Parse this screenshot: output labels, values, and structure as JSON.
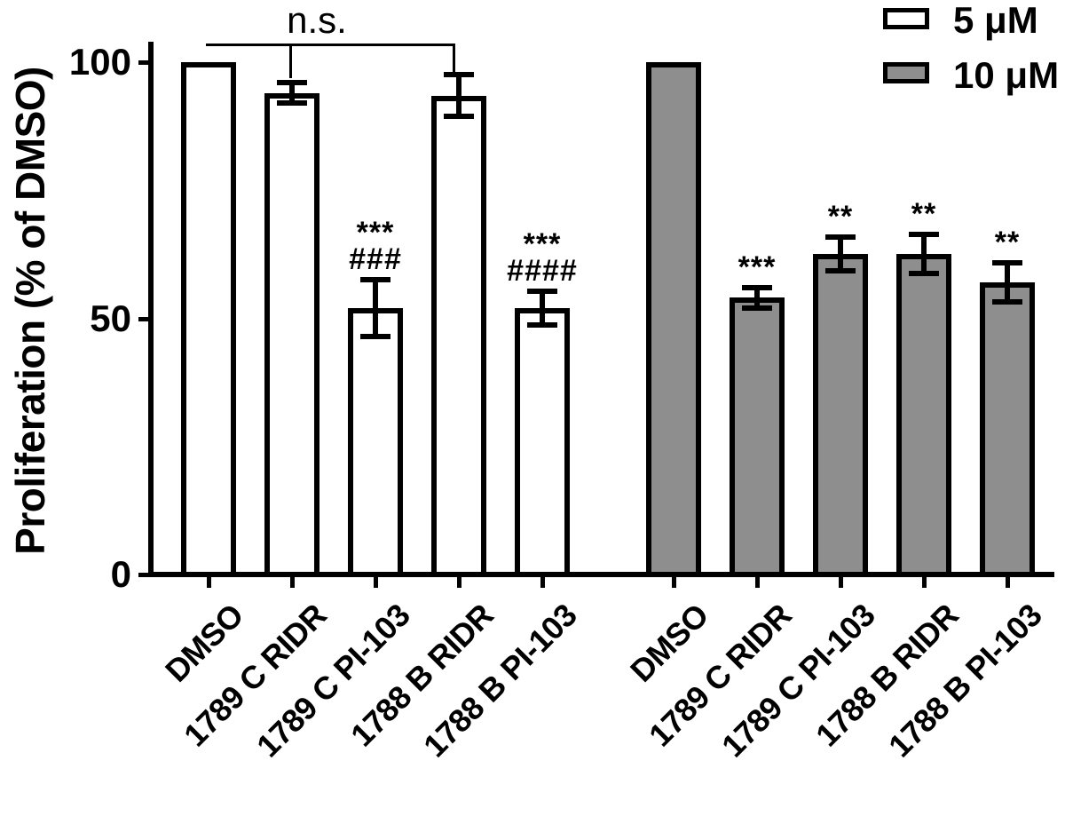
{
  "figure": {
    "y_axis_title": "Proliferation (% of DMSO)",
    "bracket_label": "n.s."
  },
  "chart_data": {
    "type": "bar",
    "title": "",
    "xlabel": "",
    "ylabel": "Proliferation (% of DMSO)",
    "ylim": [
      0,
      112
    ],
    "yticks": [
      0,
      50,
      100
    ],
    "grid": false,
    "legend_position": "top-right",
    "categories": [
      "DMSO",
      "1789 C RIDR",
      "1789 C PI-103",
      "1788 B RIDR",
      "1788 B PI-103"
    ],
    "series": [
      {
        "name": "5 μM",
        "fill": "#ffffff",
        "values": [
          100,
          94,
          52,
          93.5,
          52
        ],
        "errors": [
          null,
          2,
          5.5,
          4,
          3.3
        ],
        "annotations": [
          [],
          [],
          [
            "***",
            "###"
          ],
          [],
          [
            "***",
            "####"
          ]
        ]
      },
      {
        "name": "10 μM",
        "fill": "#8e8e8e",
        "values": [
          100,
          54,
          62.5,
          62.5,
          57
        ],
        "errors": [
          null,
          2,
          3.3,
          3.8,
          3.8
        ],
        "annotations": [
          [],
          [
            "***"
          ],
          [
            "**"
          ],
          [
            "**"
          ],
          [
            "**"
          ]
        ]
      }
    ],
    "bracket": {
      "label": "n.s.",
      "series": 0,
      "bars": [
        0,
        1,
        3
      ]
    }
  }
}
